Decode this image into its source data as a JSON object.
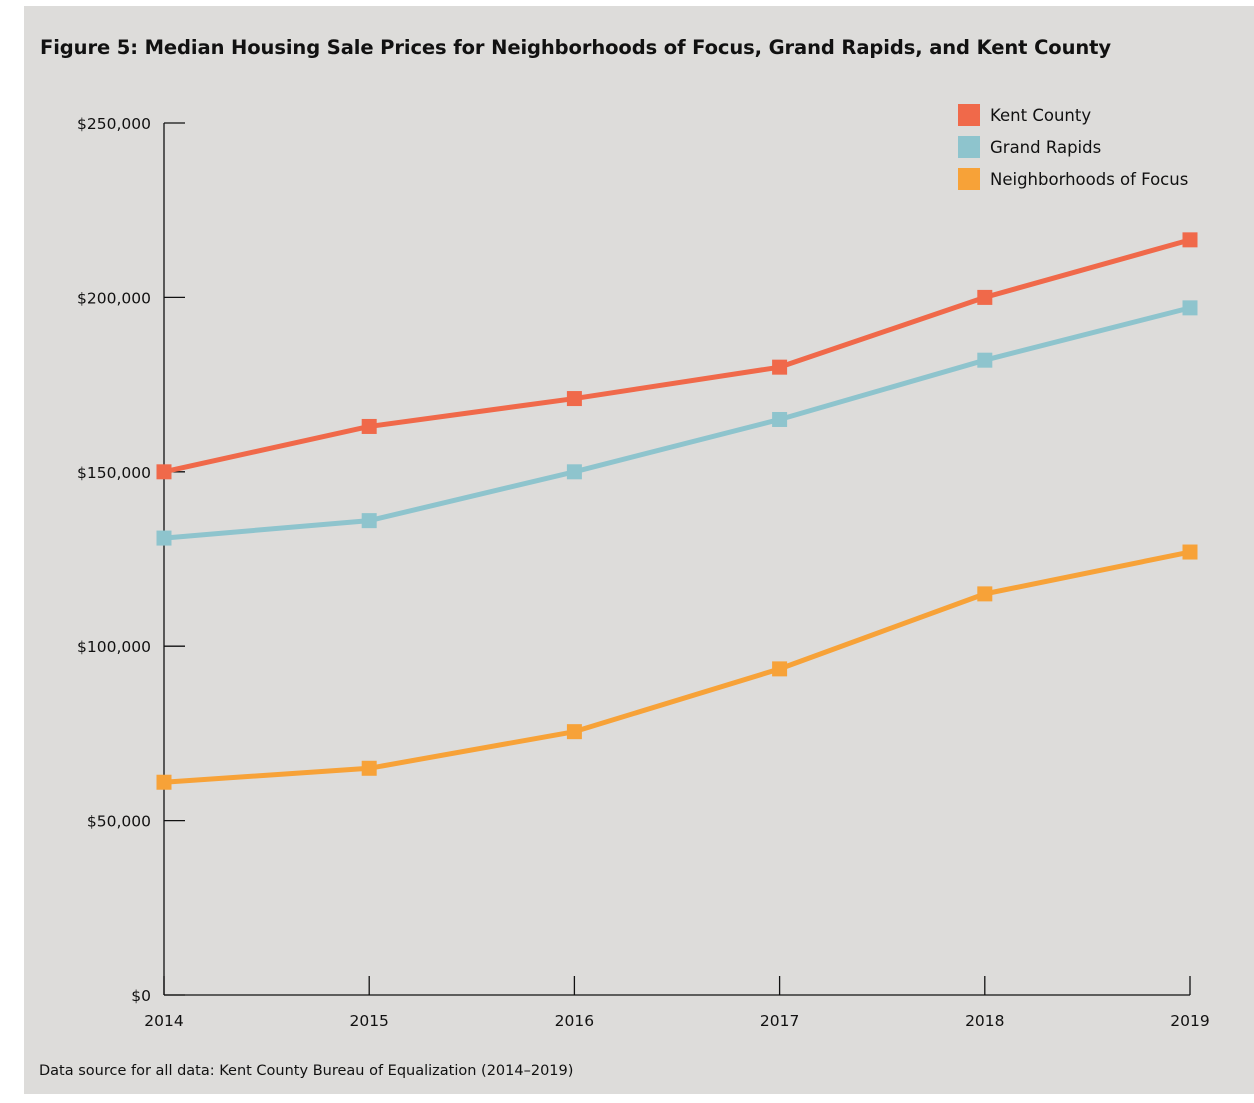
{
  "figure": {
    "title": "Figure 5: Median Housing Sale Prices for Neighborhoods of Focus, Grand Rapids, and Kent County",
    "source": "Data source for all data: Kent County Bureau of Equalization (2014–2019)",
    "background_color": "#dddcda"
  },
  "chart_data": {
    "type": "line",
    "title": "Figure 5: Median Housing Sale Prices for Neighborhoods of Focus, Grand Rapids, and Kent County",
    "x": [
      2014,
      2015,
      2016,
      2017,
      2018,
      2019
    ],
    "x_tick_labels": [
      "2014",
      "2015",
      "2016",
      "2017",
      "2018",
      "2019"
    ],
    "ylim": [
      0,
      250000
    ],
    "y_ticks": [
      0,
      50000,
      100000,
      150000,
      200000,
      250000
    ],
    "y_tick_labels": [
      "$0",
      "$50,000",
      "$100,000",
      "$150,000",
      "$200,000",
      "$250,000"
    ],
    "xlabel": "",
    "ylabel": "",
    "grid": false,
    "legend_position": "top-right",
    "marker": "square",
    "series": [
      {
        "name": "Kent County",
        "color": "#f0694a",
        "values": [
          150000,
          163000,
          171000,
          180000,
          200000,
          216500
        ]
      },
      {
        "name": "Grand Rapids",
        "color": "#8ec4cd",
        "values": [
          131000,
          136000,
          150000,
          165000,
          182000,
          197000
        ]
      },
      {
        "name": "Neighborhoods of Focus",
        "color": "#f7a238",
        "values": [
          61000,
          65000,
          75500,
          93500,
          115000,
          127000
        ]
      }
    ]
  }
}
